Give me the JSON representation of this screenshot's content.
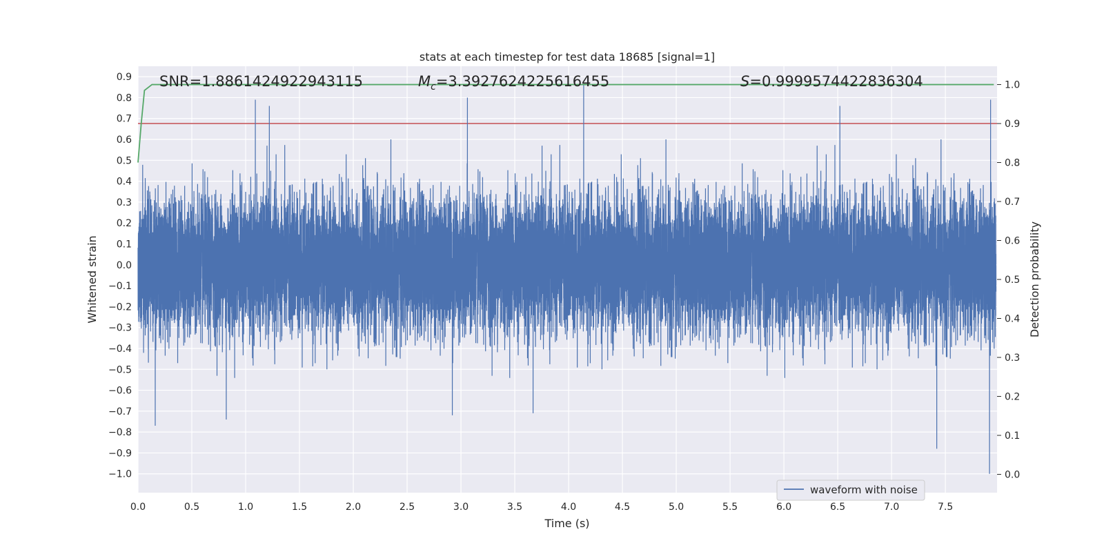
{
  "chart_data": {
    "type": "line",
    "title": "stats at each timestep for test data 18685 [signal=1]",
    "xlabel": "Time (s)",
    "ylabel": "Whitened strain",
    "ylabel_right": "Detection probability",
    "xlim": [
      0,
      7.98
    ],
    "ylim": [
      -1.09,
      0.95
    ],
    "ylim_right": [
      -0.047,
      1.047
    ],
    "grid": true,
    "legend_position": "lower-right",
    "x_ticks": [
      "0.0",
      "0.5",
      "1.0",
      "1.5",
      "2.0",
      "2.5",
      "3.0",
      "3.5",
      "4.0",
      "4.5",
      "5.0",
      "5.5",
      "6.0",
      "6.5",
      "7.0",
      "7.5"
    ],
    "x_tick_values": [
      0.0,
      0.5,
      1.0,
      1.5,
      2.0,
      2.5,
      3.0,
      3.5,
      4.0,
      4.5,
      5.0,
      5.5,
      6.0,
      6.5,
      7.0,
      7.5
    ],
    "y_ticks": [
      "0.9",
      "0.8",
      "0.7",
      "0.6",
      "0.5",
      "0.4",
      "0.3",
      "0.2",
      "0.1",
      "0.0",
      "−0.1",
      "−0.2",
      "−0.3",
      "−0.4",
      "−0.5",
      "−0.6",
      "−0.7",
      "−0.8",
      "−0.9",
      "−1.0"
    ],
    "y_tick_values": [
      0.9,
      0.8,
      0.7,
      0.6,
      0.5,
      0.4,
      0.3,
      0.2,
      0.1,
      0.0,
      -0.1,
      -0.2,
      -0.3,
      -0.4,
      -0.5,
      -0.6,
      -0.7,
      -0.8,
      -0.9,
      -1.0
    ],
    "y_right_ticks": [
      "1.0",
      "0.9",
      "0.8",
      "0.7",
      "0.6",
      "0.5",
      "0.4",
      "0.3",
      "0.2",
      "0.1",
      "0.0"
    ],
    "y_right_tick_values": [
      1.0,
      0.9,
      0.8,
      0.7,
      0.6,
      0.5,
      0.4,
      0.3,
      0.2,
      0.1,
      0.0
    ],
    "annotations": {
      "snr": "SNR=1.8861424922943115",
      "mc_symbol": "M",
      "mc_subscript": "c",
      "mc_value": "=3.3927624225616455",
      "s_symbol": "S",
      "s_value": "=0.9999574422836304"
    },
    "threshold": {
      "value": 0.9,
      "axis": "right",
      "color": "#c44e52"
    },
    "series": [
      {
        "name": "waveform with noise",
        "axis": "left",
        "color": "#4c72b0",
        "sample_rate_hz": 2048,
        "peaks": [
          [
            1.09,
            0.79
          ],
          [
            1.22,
            0.76
          ],
          [
            3.06,
            0.8
          ],
          [
            4.14,
            0.86
          ],
          [
            6.52,
            0.76
          ],
          [
            7.92,
            0.79
          ],
          [
            0.16,
            -0.77
          ],
          [
            0.82,
            -0.74
          ],
          [
            2.92,
            -0.72
          ],
          [
            3.67,
            -0.71
          ],
          [
            7.42,
            -0.88
          ],
          [
            7.91,
            -1.0
          ]
        ]
      },
      {
        "name": "",
        "axis": "right",
        "color": "#55a868",
        "x": [
          0.0,
          0.03,
          0.06,
          0.13,
          7.95
        ],
        "values": [
          0.8,
          0.9,
          0.985,
          1.0,
          1.0
        ]
      }
    ]
  }
}
